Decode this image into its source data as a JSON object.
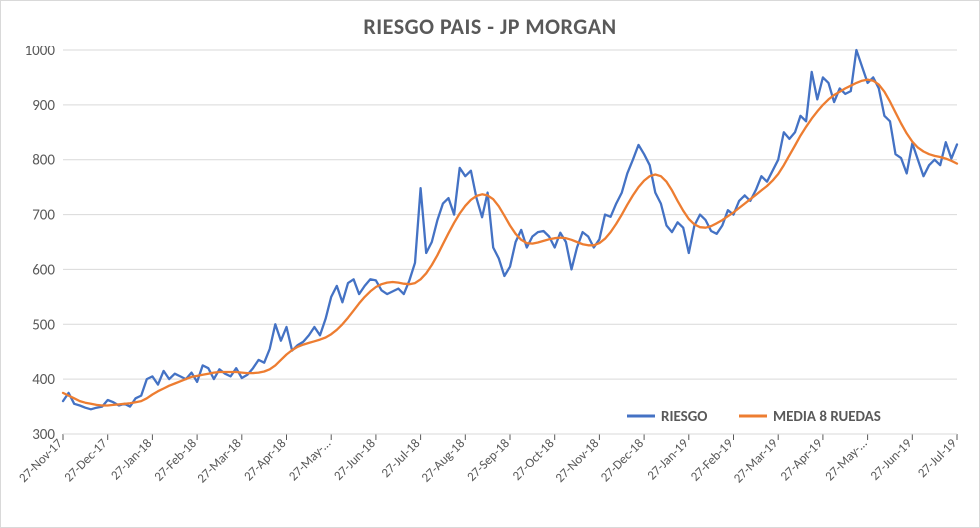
{
  "chart": {
    "type": "line",
    "title": "RIESGO PAIS - JP MORGAN",
    "title_fontsize": 22,
    "title_color": "#595959",
    "background_color": "#ffffff",
    "border_color": "#d9d9d9",
    "grid_color": "#d9d9d9",
    "grid_on": true,
    "ylim": [
      300,
      1000
    ],
    "ytick_step": 100,
    "yticks": [
      300,
      400,
      500,
      600,
      700,
      800,
      900,
      1000
    ],
    "ytick_fontsize": 15,
    "ytick_color": "#595959",
    "xtick_fontsize": 13,
    "xtick_color": "#595959",
    "xtick_rotation": -45,
    "line_width": 2.3,
    "legend": {
      "position": "bottom-right-inside",
      "fontsize": 15,
      "fontweight": "700",
      "items": [
        {
          "label": "RIESGO",
          "color": "#4472c4",
          "swatch_width": 28,
          "swatch_height": 3
        },
        {
          "label": "MEDIA 8 RUEDAS",
          "color": "#ed7d31",
          "swatch_width": 28,
          "swatch_height": 3
        }
      ]
    },
    "x_categories": [
      "27-Nov-17",
      "27-Dec-17",
      "27-Jan-18",
      "27-Feb-18",
      "27-Mar-18",
      "27-Apr-18",
      "27-May-…",
      "27-Jun-18",
      "27-Jul-18",
      "27-Aug-18",
      "27-Sep-18",
      "27-Oct-18",
      "27-Nov-18",
      "27-Dec-18",
      "27-Jan-19",
      "27-Feb-19",
      "27-Mar-19",
      "27-Apr-19",
      "27-May-…",
      "27-Jun-19",
      "27-Jul-19"
    ],
    "series": [
      {
        "name": "RIESGO",
        "color": "#4472c4",
        "data": [
          360,
          375,
          355,
          352,
          348,
          345,
          348,
          350,
          362,
          358,
          352,
          355,
          350,
          365,
          370,
          400,
          405,
          390,
          415,
          400,
          410,
          405,
          400,
          412,
          395,
          425,
          420,
          400,
          418,
          410,
          405,
          420,
          402,
          408,
          420,
          435,
          430,
          455,
          500,
          470,
          495,
          452,
          462,
          468,
          480,
          495,
          480,
          510,
          550,
          570,
          540,
          575,
          582,
          555,
          570,
          582,
          580,
          562,
          555,
          560,
          565,
          555,
          580,
          612,
          748,
          630,
          650,
          690,
          720,
          730,
          700,
          785,
          770,
          780,
          730,
          695,
          740,
          640,
          620,
          588,
          605,
          650,
          672,
          640,
          660,
          668,
          670,
          660,
          640,
          667,
          650,
          600,
          640,
          668,
          660,
          640,
          655,
          700,
          696,
          720,
          740,
          775,
          800,
          827,
          810,
          790,
          740,
          720,
          680,
          668,
          686,
          676,
          630,
          680,
          700,
          690,
          670,
          665,
          680,
          708,
          700,
          725,
          735,
          725,
          745,
          770,
          760,
          780,
          800,
          850,
          838,
          850,
          880,
          870,
          960,
          910,
          950,
          940,
          905,
          930,
          920,
          925,
          1000,
          970,
          940,
          950,
          930,
          880,
          870,
          810,
          803,
          775,
          830,
          800,
          770,
          790,
          800,
          790,
          832,
          802,
          828
        ]
      },
      {
        "name": "MEDIA 8 RUEDAS",
        "color": "#ed7d31",
        "data": [
          375,
          370,
          365,
          360,
          357,
          355,
          353,
          352,
          352,
          353,
          354,
          355,
          356,
          358,
          360,
          365,
          372,
          378,
          383,
          388,
          392,
          396,
          400,
          404,
          406,
          408,
          410,
          412,
          413,
          413,
          413,
          413,
          412,
          411,
          411,
          412,
          414,
          418,
          425,
          435,
          445,
          453,
          459,
          463,
          466,
          469,
          472,
          476,
          482,
          490,
          500,
          512,
          525,
          538,
          550,
          560,
          568,
          573,
          576,
          577,
          576,
          574,
          573,
          575,
          582,
          593,
          608,
          626,
          646,
          666,
          685,
          702,
          716,
          727,
          734,
          737,
          735,
          728,
          715,
          698,
          680,
          665,
          654,
          648,
          647,
          649,
          652,
          655,
          657,
          658,
          657,
          654,
          650,
          646,
          644,
          644,
          648,
          656,
          668,
          683,
          700,
          718,
          735,
          750,
          762,
          770,
          773,
          770,
          760,
          744,
          725,
          707,
          692,
          682,
          677,
          676,
          679,
          684,
          690,
          697,
          704,
          712,
          720,
          728,
          736,
          744,
          752,
          762,
          774,
          790,
          808,
          826,
          844,
          860,
          875,
          888,
          900,
          910,
          918,
          924,
          930,
          935,
          940,
          944,
          946,
          944,
          937,
          924,
          906,
          886,
          866,
          848,
          833,
          822,
          815,
          810,
          807,
          805,
          802,
          798,
          793
        ]
      }
    ]
  }
}
